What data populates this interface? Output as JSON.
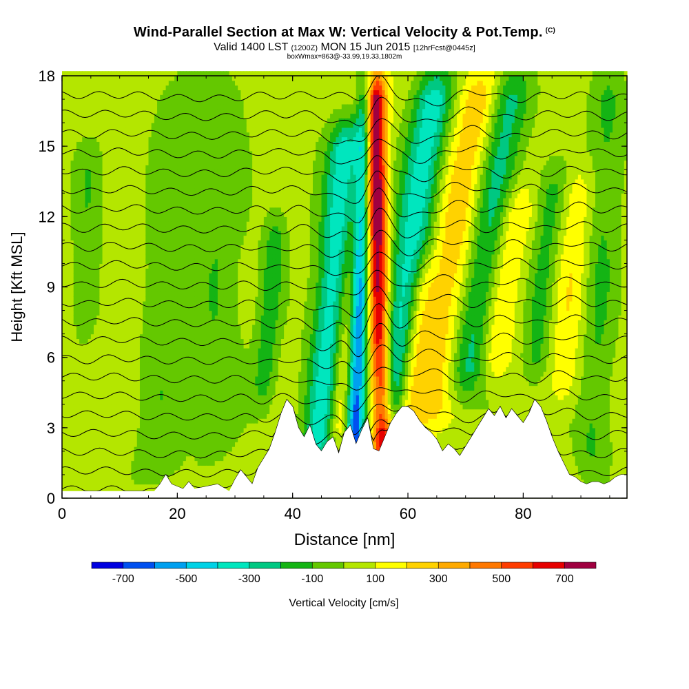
{
  "title": {
    "main": "Wind-Parallel Section at Max W: Vertical Velocity & Pot.Temp.",
    "copyright": "(C)",
    "valid_a": "Valid 1400 LST",
    "valid_b": "(1200Z)",
    "valid_c": "MON 15 Jun 2015",
    "valid_d": "[12hrFcst@0445z]",
    "box": "boxWmax=863@-33.99,19.33,1802m"
  },
  "chart_data": {
    "type": "heatmap",
    "xlabel": "Distance [nm]",
    "ylabel": "Height [Kft MSL]",
    "xlim": [
      0,
      98
    ],
    "ylim": [
      0,
      18
    ],
    "x_ticks": [
      0,
      20,
      40,
      60,
      80
    ],
    "y_ticks": [
      0,
      3,
      6,
      9,
      12,
      15,
      18
    ],
    "colorbar": {
      "label": "Vertical Velocity [cm/s]",
      "tick_labels": [
        "-700",
        "-500",
        "-300",
        "-100",
        "100",
        "300",
        "500",
        "700"
      ],
      "tick_values": [
        -700,
        -500,
        -300,
        -100,
        100,
        300,
        500,
        700
      ],
      "bins": [
        {
          "from": -800,
          "to": -700,
          "color": "#0000e0"
        },
        {
          "from": -700,
          "to": -600,
          "color": "#0050f0"
        },
        {
          "from": -600,
          "to": -500,
          "color": "#00a0f0"
        },
        {
          "from": -500,
          "to": -400,
          "color": "#00d2e6"
        },
        {
          "from": -400,
          "to": -300,
          "color": "#00e6be"
        },
        {
          "from": -300,
          "to": -200,
          "color": "#00c882"
        },
        {
          "from": -200,
          "to": -100,
          "color": "#14b414"
        },
        {
          "from": -100,
          "to": 0,
          "color": "#64c800"
        },
        {
          "from": 0,
          "to": 100,
          "color": "#b4e600"
        },
        {
          "from": 100,
          "to": 200,
          "color": "#ffff00"
        },
        {
          "from": 200,
          "to": 300,
          "color": "#ffd200"
        },
        {
          "from": 300,
          "to": 400,
          "color": "#ffaa00"
        },
        {
          "from": 400,
          "to": 500,
          "color": "#ff7800"
        },
        {
          "from": 500,
          "to": 600,
          "color": "#ff3c00"
        },
        {
          "from": 600,
          "to": 700,
          "color": "#e60000"
        },
        {
          "from": 700,
          "to": 800,
          "color": "#a00040"
        }
      ]
    },
    "velocity_features": [
      {
        "x": 47,
        "w": 3.2,
        "tilt": 0.35,
        "amp": -450,
        "zmin": 1.5,
        "zmax": 16
      },
      {
        "x": 51.5,
        "w": 1.6,
        "tilt": 0.15,
        "amp": -750,
        "zmin": 1.5,
        "zmax": 18
      },
      {
        "x": 55,
        "w": 1.8,
        "tilt": -0.1,
        "amp": 750,
        "zmin": 1.5,
        "zmax": 18
      },
      {
        "x": 50,
        "w": 2.5,
        "tilt": 0.4,
        "amp": 350,
        "zmin": 2,
        "zmax": 18
      },
      {
        "x": 59,
        "w": 3.5,
        "tilt": 0.6,
        "amp": -400,
        "zmin": 3,
        "zmax": 18
      },
      {
        "x": 66,
        "w": 4.0,
        "tilt": 0.7,
        "amp": 250,
        "zmin": 3,
        "zmax": 18
      },
      {
        "x": 72,
        "w": 3.5,
        "tilt": 0.6,
        "amp": -300,
        "zmin": 4.5,
        "zmax": 18
      },
      {
        "x": 76,
        "w": 3.0,
        "tilt": 0.6,
        "amp": 200,
        "zmin": 5,
        "zmax": 13
      },
      {
        "x": 83,
        "w": 2.5,
        "tilt": 0.4,
        "amp": -180,
        "zmin": 5,
        "zmax": 14
      },
      {
        "x": 36,
        "w": 2.0,
        "tilt": 0.3,
        "amp": -200,
        "zmin": 4,
        "zmax": 12
      },
      {
        "x": 27,
        "w": 4.0,
        "tilt": 0.1,
        "amp": -130,
        "zmin": 2,
        "zmax": 18
      },
      {
        "x": 4,
        "w": 2.5,
        "tilt": 0.1,
        "amp": -120,
        "zmin": 7,
        "zmax": 15
      },
      {
        "x": 18,
        "w": 4.0,
        "tilt": 0.2,
        "amp": -110,
        "zmin": 0.5,
        "zmax": 18
      },
      {
        "x": 62,
        "w": 2.0,
        "tilt": 0.5,
        "amp": 180,
        "zmin": 3,
        "zmax": 10
      },
      {
        "x": 88,
        "w": 3.0,
        "tilt": 0.3,
        "amp": 150,
        "zmin": 4,
        "zmax": 14
      },
      {
        "x": 93,
        "w": 3.0,
        "tilt": 0.2,
        "amp": -150,
        "zmin": 1,
        "zmax": 18
      }
    ],
    "terrain": {
      "x": [
        0,
        16,
        17,
        18,
        19,
        21,
        22,
        23,
        25,
        27,
        29,
        30,
        31,
        32,
        33,
        34,
        35,
        36,
        37,
        38,
        39,
        40,
        41,
        42,
        43,
        44,
        45,
        46,
        47,
        48,
        49,
        50,
        51,
        52,
        53,
        54,
        55,
        56,
        57,
        58,
        59,
        60,
        61,
        62,
        63,
        64,
        65,
        66,
        67,
        68,
        69,
        70,
        71,
        72,
        73,
        74,
        75,
        76,
        77,
        78,
        79,
        80,
        81,
        82,
        83,
        84,
        85,
        86,
        87,
        88,
        89,
        90,
        91,
        92,
        93,
        94,
        95,
        96,
        97,
        98
      ],
      "z": [
        0.3,
        0.3,
        0.6,
        1.0,
        0.6,
        0.4,
        0.7,
        0.4,
        0.5,
        0.6,
        0.3,
        0.8,
        1.2,
        0.9,
        0.6,
        1.3,
        1.7,
        2.1,
        2.8,
        3.6,
        4.2,
        3.9,
        3.0,
        2.6,
        3.1,
        2.3,
        2.0,
        2.4,
        2.6,
        1.9,
        2.8,
        3.1,
        2.3,
        2.9,
        3.4,
        2.1,
        2.0,
        2.6,
        3.2,
        3.6,
        3.9,
        3.9,
        3.7,
        3.3,
        3.0,
        2.8,
        2.5,
        2.0,
        2.3,
        2.1,
        1.8,
        2.2,
        2.6,
        3.0,
        3.4,
        3.8,
        3.5,
        3.9,
        3.4,
        3.8,
        3.5,
        3.2,
        3.6,
        4.2,
        3.9,
        3.3,
        2.6,
        2.0,
        1.5,
        1.0,
        0.9,
        0.7,
        0.6,
        0.7,
        0.7,
        0.6,
        0.7,
        0.9,
        1.0,
        1.0
      ]
    },
    "theta_contours": {
      "count": 22,
      "z_start": 0.4,
      "z_step": 0.8
    }
  }
}
